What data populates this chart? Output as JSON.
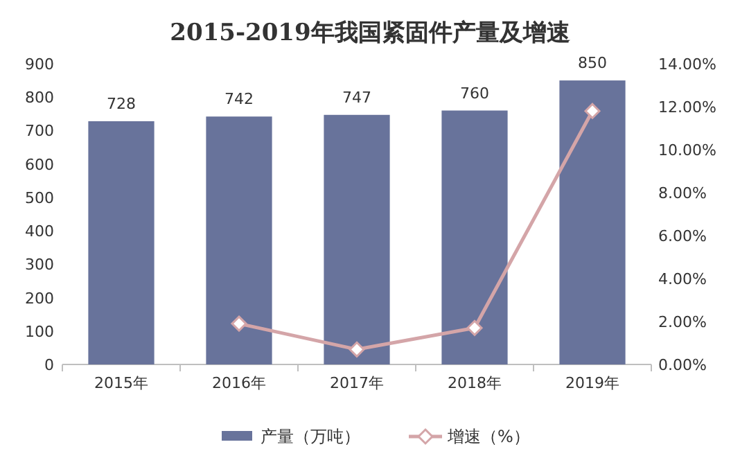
{
  "chart_data": {
    "type": "bar",
    "title": "2015-2019年我国紧固件产量及增速",
    "categories": [
      "2015年",
      "2016年",
      "2017年",
      "2018年",
      "2019年"
    ],
    "series": [
      {
        "name": "产量（万吨）",
        "color": "#68739b",
        "values": [
          728,
          742,
          747,
          760,
          850
        ],
        "value_labels": [
          "728",
          "742",
          "747",
          "760",
          "850"
        ]
      },
      {
        "name": "增速（%）",
        "type": "line",
        "axis": "y2",
        "color": "#d4a5a8",
        "marker": "diamond",
        "values": [
          null,
          1.9,
          0.7,
          1.7,
          11.8
        ]
      }
    ],
    "ylim": [
      0,
      900
    ],
    "yticks": [
      0,
      100,
      200,
      300,
      400,
      500,
      600,
      700,
      800,
      900
    ],
    "y2lim": [
      0,
      14
    ],
    "y2ticks": [
      {
        "value": 0,
        "label": "0.00%"
      },
      {
        "value": 2,
        "label": "2.00%"
      },
      {
        "value": 4,
        "label": "4.00%"
      },
      {
        "value": 6,
        "label": "6.00%"
      },
      {
        "value": 8,
        "label": "8.00%"
      },
      {
        "value": 10,
        "label": "10.00%"
      },
      {
        "value": 12,
        "label": "12.00%"
      },
      {
        "value": 14,
        "label": "14.00%"
      }
    ],
    "legend": "bottom",
    "grid": false
  }
}
